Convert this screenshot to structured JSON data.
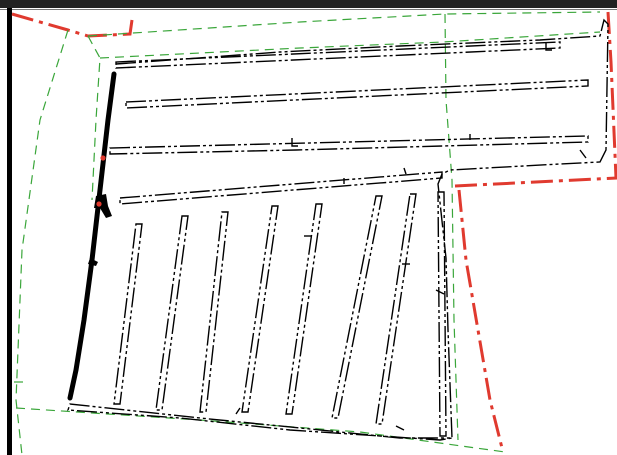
{
  "map": {
    "colors": {
      "background": "#ffffff",
      "frame": "#000000",
      "parcel_boundary_red": "#e03a2f",
      "easement_green": "#3aa63a",
      "lot_outline": "#000000",
      "marker_red": "#e03a2f"
    },
    "layers": [
      "top-frame-bar",
      "left-frame-bar",
      "red-parcel-boundary",
      "green-dashed-easement",
      "dash-dot-lot-outlines",
      "heavy-black-wall",
      "red-survey-markers"
    ]
  }
}
